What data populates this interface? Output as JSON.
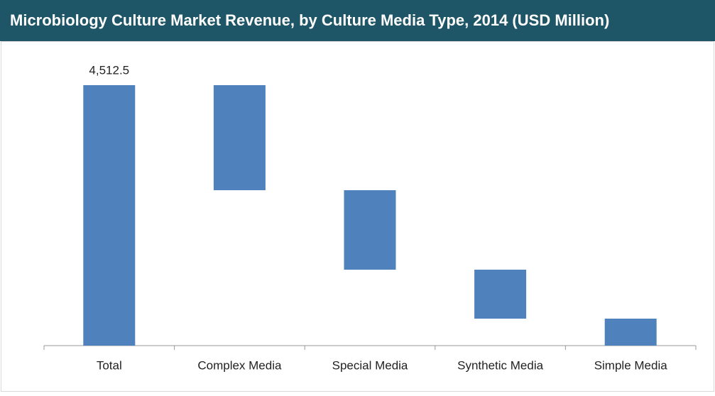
{
  "chart_data": {
    "type": "waterfall",
    "title": "Microbiology Culture Market Revenue, by Culture Media Type, 2014 (USD Million)",
    "categories": [
      "Total",
      "Complex Media",
      "Special Media",
      "Synthetic Media",
      "Simple Media"
    ],
    "values": [
      4512.5,
      1820,
      1377,
      848,
      467
    ],
    "value_labels": [
      "4,512.5",
      null,
      null,
      null,
      null
    ],
    "color": "#4f81bd"
  }
}
